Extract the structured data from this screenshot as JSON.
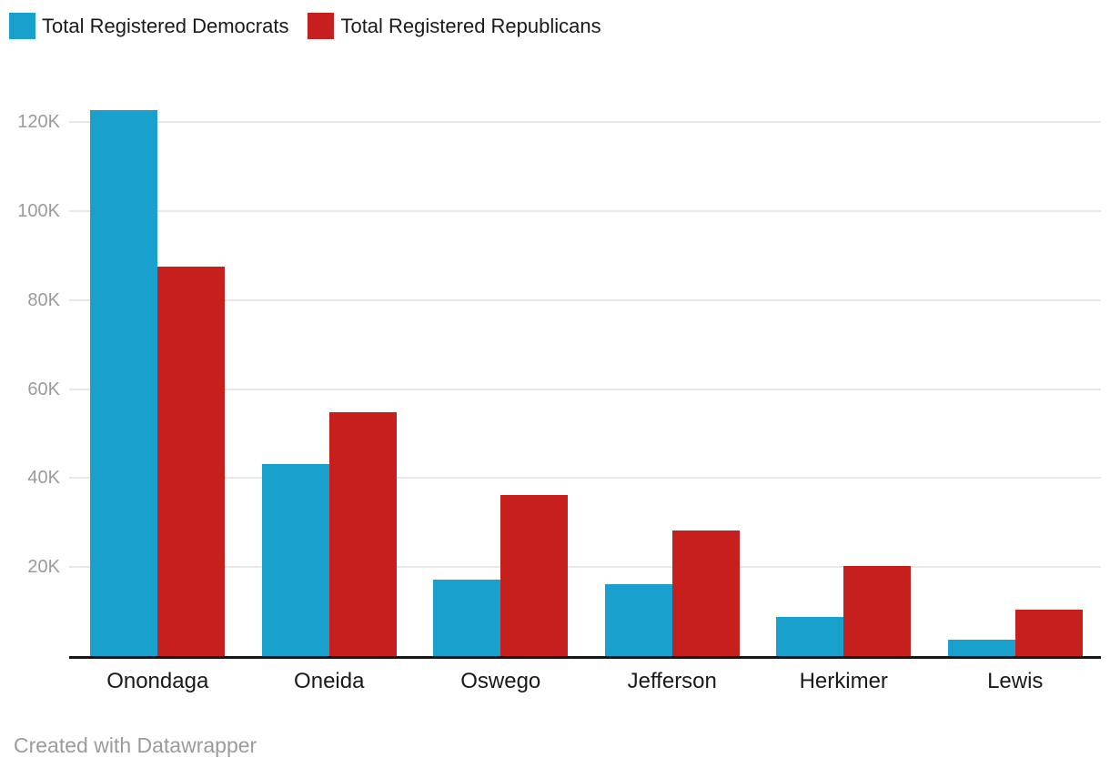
{
  "chart_data": {
    "type": "bar",
    "categories": [
      "Onondaga",
      "Oneida",
      "Oswego",
      "Jefferson",
      "Herkimer",
      "Lewis"
    ],
    "series": [
      {
        "name": "Total Registered Democrats",
        "color": "#18a1cd",
        "values": [
          122700,
          43100,
          17200,
          16200,
          8800,
          3600
        ]
      },
      {
        "name": "Total Registered Republicans",
        "color": "#c71e1e",
        "values": [
          87600,
          54900,
          36200,
          28200,
          20300,
          10400
        ]
      }
    ],
    "title": "",
    "xlabel": "",
    "ylabel": "",
    "ylim": [
      0,
      127000
    ],
    "yticks": [
      20000,
      40000,
      60000,
      80000,
      100000,
      120000
    ],
    "ytick_labels": [
      "20K",
      "40K",
      "60K",
      "80K",
      "100K",
      "120K"
    ],
    "grid": true,
    "legend_position": "top-left",
    "gridline_color": "#e8e8e8",
    "axis_line_color": "#161616",
    "tick_label_color": "#9b9b9b",
    "category_label_color": "#1a1a1a"
  },
  "footer": {
    "attribution": "Created with Datawrapper"
  }
}
